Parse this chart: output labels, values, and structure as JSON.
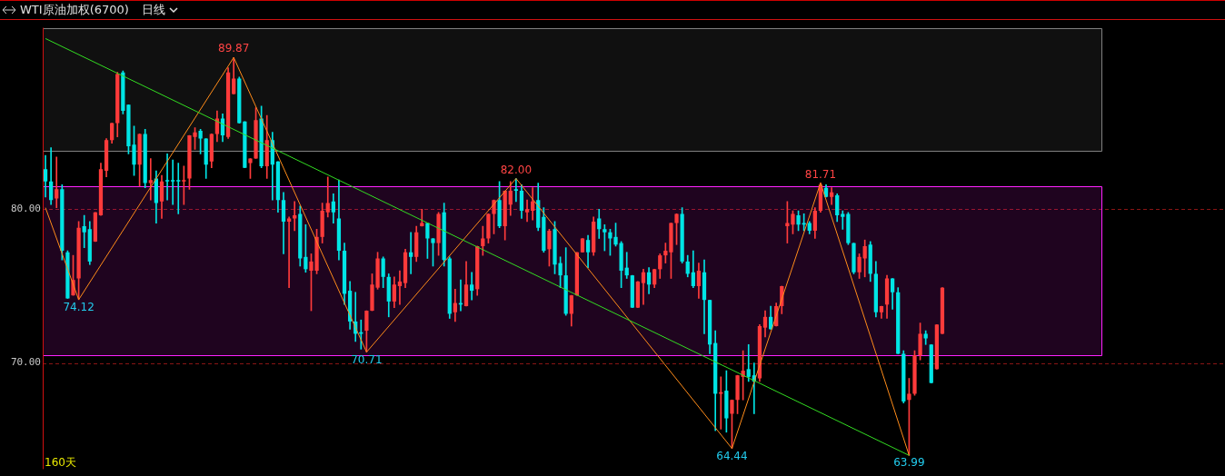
{
  "chart_data": {
    "type": "candlestick",
    "title": "WTI原油加权(6700)",
    "subtitle": "日线",
    "categories": [
      null,
      null,
      null,
      null,
      null,
      null,
      null,
      null,
      null,
      null,
      null,
      null,
      null,
      null,
      null,
      null,
      null,
      null,
      null,
      null,
      null,
      null,
      null,
      null,
      null,
      null,
      null,
      null,
      null,
      null,
      null,
      null,
      null,
      null,
      null,
      null,
      null,
      null,
      null,
      null,
      null,
      null,
      null,
      null,
      null,
      null,
      null,
      null,
      null,
      null,
      null,
      null,
      null,
      null,
      null,
      null,
      null,
      null,
      null,
      null,
      null,
      null,
      null,
      null,
      null,
      null,
      null,
      null,
      null,
      null,
      null,
      null,
      null,
      null,
      null,
      null,
      null,
      null,
      null,
      null,
      null,
      null,
      null,
      null,
      null,
      null,
      null,
      null,
      null,
      null,
      null,
      null,
      null,
      null,
      null,
      null,
      null,
      null,
      null,
      null,
      null,
      null,
      null,
      null,
      null,
      null,
      null,
      null,
      null,
      null,
      null,
      null,
      null,
      null,
      null,
      null,
      null,
      null,
      null,
      null,
      null,
      null,
      null,
      null,
      null,
      null,
      null,
      null,
      null,
      null,
      null,
      null,
      null,
      null,
      null,
      null,
      null,
      null,
      null,
      null,
      null,
      null,
      null,
      null,
      null,
      null,
      null,
      null,
      null,
      null,
      null,
      null,
      null,
      null,
      null,
      null,
      null,
      null,
      null,
      null,
      null,
      null,
      null
    ],
    "ohlc": [
      [
        82.6,
        83.5,
        80.8,
        81.8
      ],
      [
        81.8,
        84.0,
        80.3,
        80.6
      ],
      [
        80.7,
        83.4,
        80.1,
        81.3
      ],
      [
        81.3,
        81.6,
        76.7,
        77.3
      ],
      [
        77.2,
        77.3,
        74.2,
        74.2
      ],
      [
        74.4,
        77.0,
        74.4,
        75.4
      ],
      [
        75.5,
        79.2,
        74.12,
        78.8
      ],
      [
        78.9,
        79.6,
        77.5,
        78.5
      ],
      [
        78.7,
        79.2,
        76.4,
        76.6
      ],
      [
        77.9,
        79.8,
        77.9,
        79.8
      ],
      [
        79.6,
        83.0,
        79.6,
        82.6
      ],
      [
        82.5,
        84.6,
        82.1,
        84.5
      ],
      [
        84.5,
        85.6,
        84.3,
        85.6
      ],
      [
        85.6,
        88.9,
        84.7,
        88.8
      ],
      [
        88.9,
        89.0,
        86.2,
        86.4
      ],
      [
        86.8,
        86.8,
        83.6,
        84.1
      ],
      [
        84.2,
        85.4,
        82.2,
        82.9
      ],
      [
        82.9,
        84.9,
        81.5,
        84.9
      ],
      [
        84.9,
        85.2,
        81.4,
        81.7
      ],
      [
        81.7,
        83.3,
        80.6,
        81.9
      ],
      [
        82.0,
        82.5,
        79.1,
        80.4
      ],
      [
        80.5,
        82.2,
        79.4,
        81.8
      ],
      [
        81.9,
        83.6,
        80.6,
        81.8
      ],
      [
        81.9,
        83.2,
        80.3,
        81.8
      ],
      [
        81.9,
        83.0,
        79.7,
        81.8
      ],
      [
        81.8,
        82.8,
        80.3,
        81.9
      ],
      [
        82.0,
        84.8,
        81.3,
        84.8
      ],
      [
        84.7,
        85.3,
        83.9,
        85.0
      ],
      [
        85.1,
        85.2,
        83.6,
        84.6
      ],
      [
        84.6,
        84.6,
        82.0,
        82.9
      ],
      [
        83.1,
        84.9,
        82.7,
        84.9
      ],
      [
        84.9,
        86.4,
        84.4,
        85.9
      ],
      [
        85.9,
        86.2,
        84.4,
        84.8
      ],
      [
        84.7,
        89.2,
        84.6,
        88.9
      ],
      [
        87.5,
        89.87,
        87.5,
        88.5
      ],
      [
        88.5,
        88.6,
        85.6,
        85.6
      ],
      [
        85.7,
        85.7,
        82.7,
        82.7
      ],
      [
        83.0,
        83.3,
        82.0,
        83.3
      ],
      [
        83.3,
        86.6,
        83.3,
        85.8
      ],
      [
        85.9,
        86.7,
        82.7,
        82.8
      ],
      [
        82.8,
        86.1,
        82.0,
        84.5
      ],
      [
        84.5,
        85.0,
        80.6,
        82.9
      ],
      [
        83.1,
        83.1,
        79.8,
        80.6
      ],
      [
        80.6,
        81.1,
        77.1,
        79.2
      ],
      [
        79.2,
        79.5,
        74.9,
        79.4
      ],
      [
        79.4,
        80.5,
        78.6,
        79.6
      ],
      [
        79.7,
        80.2,
        76.3,
        76.8
      ],
      [
        76.9,
        79.0,
        75.9,
        76.1
      ],
      [
        76.0,
        77.1,
        73.4,
        76.6
      ],
      [
        76.0,
        78.7,
        75.8,
        78.2
      ],
      [
        78.2,
        80.4,
        77.8,
        79.9
      ],
      [
        79.8,
        82.1,
        79.5,
        80.4
      ],
      [
        80.5,
        81.0,
        79.1,
        79.8
      ],
      [
        79.4,
        81.9,
        76.7,
        77.3
      ],
      [
        77.3,
        77.8,
        73.8,
        74.5
      ],
      [
        74.7,
        75.3,
        72.2,
        72.7
      ],
      [
        72.7,
        74.6,
        71.4,
        71.9
      ],
      [
        72.0,
        72.8,
        70.9,
        71.9
      ],
      [
        72.1,
        73.4,
        70.71,
        73.4
      ],
      [
        73.4,
        75.8,
        73.4,
        75.1
      ],
      [
        74.9,
        77.2,
        74.8,
        76.8
      ],
      [
        76.8,
        76.9,
        74.9,
        75.6
      ],
      [
        75.6,
        75.8,
        73.0,
        74.0
      ],
      [
        74.0,
        75.6,
        73.6,
        75.1
      ],
      [
        75.0,
        76.0,
        73.8,
        75.3
      ],
      [
        75.2,
        77.4,
        74.9,
        77.2
      ],
      [
        77.2,
        78.5,
        75.8,
        76.9
      ],
      [
        76.9,
        78.9,
        76.6,
        78.5
      ],
      [
        78.9,
        80.0,
        78.9,
        79.1
      ],
      [
        79.1,
        79.1,
        76.8,
        78.1
      ],
      [
        78.1,
        78.1,
        76.3,
        77.8
      ],
      [
        77.8,
        79.8,
        77.0,
        79.7
      ],
      [
        79.8,
        80.4,
        76.3,
        76.7
      ],
      [
        76.8,
        76.9,
        72.9,
        73.2
      ],
      [
        73.3,
        74.8,
        72.7,
        73.9
      ],
      [
        73.9,
        75.4,
        73.4,
        73.8
      ],
      [
        73.7,
        76.6,
        73.7,
        75.1
      ],
      [
        75.1,
        75.9,
        74.1,
        74.7
      ],
      [
        74.8,
        77.6,
        74.4,
        77.6
      ],
      [
        77.6,
        78.9,
        77.0,
        78.1
      ],
      [
        78.1,
        79.7,
        77.8,
        79.7
      ],
      [
        79.7,
        80.6,
        78.4,
        80.6
      ],
      [
        80.6,
        81.8,
        78.8,
        78.9
      ],
      [
        78.9,
        81.2,
        78.0,
        81.2
      ],
      [
        80.3,
        81.8,
        79.6,
        81.2
      ],
      [
        81.3,
        82.0,
        80.5,
        81.2
      ],
      [
        81.2,
        81.6,
        79.4,
        79.9
      ],
      [
        79.8,
        80.6,
        79.2,
        80.0
      ],
      [
        79.9,
        81.4,
        79.3,
        80.5
      ],
      [
        80.6,
        81.7,
        78.6,
        78.8
      ],
      [
        79.5,
        80.1,
        77.2,
        77.3
      ],
      [
        77.4,
        78.7,
        76.3,
        78.6
      ],
      [
        78.7,
        79.2,
        75.8,
        76.4
      ],
      [
        76.5,
        76.9,
        74.9,
        75.7
      ],
      [
        75.7,
        77.5,
        73.1,
        73.2
      ],
      [
        73.2,
        74.4,
        72.4,
        74.4
      ],
      [
        74.4,
        77.2,
        74.4,
        77.2
      ],
      [
        77.2,
        78.1,
        77.2,
        78.1
      ],
      [
        78.0,
        78.3,
        76.2,
        77.2
      ],
      [
        77.2,
        79.5,
        77.0,
        79.2
      ],
      [
        79.4,
        80.0,
        78.1,
        78.7
      ],
      [
        78.7,
        79.0,
        77.3,
        78.5
      ],
      [
        78.5,
        78.7,
        77.0,
        78.1
      ],
      [
        78.2,
        79.1,
        77.6,
        77.7
      ],
      [
        77.8,
        77.9,
        74.9,
        76.0
      ],
      [
        76.2,
        77.2,
        75.5,
        75.7
      ],
      [
        75.7,
        75.7,
        73.6,
        73.6
      ],
      [
        73.6,
        75.3,
        73.6,
        75.3
      ],
      [
        75.2,
        76.1,
        73.8,
        75.9
      ],
      [
        75.9,
        76.2,
        74.5,
        75.1
      ],
      [
        75.1,
        76.1,
        74.9,
        76.1
      ],
      [
        76.1,
        77.1,
        75.5,
        77.0
      ],
      [
        77.0,
        77.8,
        76.5,
        77.3
      ],
      [
        77.2,
        79.1,
        75.5,
        79.1
      ],
      [
        79.1,
        79.7,
        77.7,
        79.7
      ],
      [
        79.7,
        80.1,
        76.5,
        76.6
      ],
      [
        76.6,
        77.0,
        75.6,
        75.8
      ],
      [
        75.9,
        77.3,
        74.9,
        75.0
      ],
      [
        75.0,
        76.5,
        74.2,
        76.0
      ],
      [
        75.9,
        76.7,
        71.9,
        74.1
      ],
      [
        74.1,
        74.1,
        70.6,
        71.2
      ],
      [
        71.3,
        72.1,
        65.6,
        68.0
      ],
      [
        68.0,
        69.1,
        65.7,
        68.1
      ],
      [
        68.2,
        69.5,
        65.5,
        66.4
      ],
      [
        66.7,
        67.6,
        64.44,
        67.6
      ],
      [
        67.6,
        69.2,
        66.7,
        69.2
      ],
      [
        69.1,
        70.8,
        67.6,
        69.5
      ],
      [
        69.6,
        71.2,
        68.8,
        69.1
      ],
      [
        69.2,
        70.0,
        66.7,
        68.8
      ],
      [
        69.0,
        72.5,
        68.8,
        72.4
      ],
      [
        72.3,
        73.4,
        71.7,
        73.0
      ],
      [
        73.0,
        73.7,
        72.2,
        72.2
      ],
      [
        72.4,
        73.9,
        72.4,
        73.7
      ],
      [
        73.7,
        75.0,
        73.2,
        75.0
      ],
      [
        78.9,
        80.5,
        77.8,
        79.1
      ],
      [
        79.0,
        79.9,
        78.4,
        79.7
      ],
      [
        79.6,
        79.9,
        78.6,
        79.0
      ],
      [
        79.1,
        79.7,
        78.6,
        79.0
      ],
      [
        79.1,
        79.2,
        78.4,
        78.6
      ],
      [
        78.6,
        80.1,
        78.1,
        79.9
      ],
      [
        79.9,
        81.71,
        79.8,
        81.6
      ],
      [
        81.4,
        81.6,
        80.8,
        80.8
      ],
      [
        80.8,
        81.4,
        80.3,
        81.1
      ],
      [
        80.9,
        81.0,
        79.2,
        79.6
      ],
      [
        79.7,
        79.9,
        78.7,
        79.5
      ],
      [
        79.7,
        79.8,
        77.7,
        77.8
      ],
      [
        77.8,
        77.8,
        75.8,
        75.9
      ],
      [
        75.9,
        77.1,
        75.5,
        76.9
      ],
      [
        76.8,
        78.0,
        75.6,
        77.6
      ],
      [
        77.7,
        77.9,
        75.3,
        75.8
      ],
      [
        75.8,
        76.6,
        73.0,
        73.3
      ],
      [
        73.3,
        73.7,
        72.9,
        73.7
      ],
      [
        73.8,
        75.7,
        72.9,
        75.5
      ],
      [
        75.5,
        75.5,
        73.5,
        74.6
      ],
      [
        74.6,
        74.9,
        70.6,
        70.6
      ],
      [
        70.6,
        70.8,
        67.4,
        67.5
      ],
      [
        67.6,
        69.0,
        63.99,
        68.0
      ],
      [
        68.0,
        70.8,
        67.9,
        70.5
      ],
      [
        70.5,
        72.6,
        70.2,
        71.9
      ],
      [
        71.9,
        72.1,
        71.2,
        71.6
      ],
      [
        71.2,
        71.2,
        68.7,
        68.7
      ],
      [
        69.6,
        72.5,
        69.6,
        72.5
      ],
      [
        71.9,
        74.9,
        71.9,
        74.9
      ]
    ],
    "colors": [
      "#00e5e5",
      "#00e5e5",
      "#ff3b3b",
      "#00e5e5",
      "#00e5e5",
      "#ff3b3b",
      "#ff3b3b",
      "#00e5e5",
      "#00e5e5",
      "#ff3b3b",
      "#ff3b3b",
      "#ff3b3b",
      "#ff3b3b",
      "#ff3b3b",
      "#00e5e5",
      "#00e5e5",
      "#00e5e5",
      "#ff3b3b",
      "#00e5e5",
      "#ff3b3b",
      "#00e5e5",
      "#ff3b3b",
      "#00e5e5",
      "#00e5e5",
      "#00e5e5",
      "#ff3b3b",
      "#ff3b3b",
      "#ff3b3b",
      "#00e5e5",
      "#00e5e5",
      "#ff3b3b",
      "#ff3b3b",
      "#00e5e5",
      "#ff3b3b",
      "#ff3b3b",
      "#00e5e5",
      "#00e5e5",
      "#ff3b3b",
      "#ff3b3b",
      "#00e5e5",
      "#ff3b3b",
      "#00e5e5",
      "#00e5e5",
      "#00e5e5",
      "#ff3b3b",
      "#ff3b3b",
      "#00e5e5",
      "#00e5e5",
      "#ff3b3b",
      "#ff3b3b",
      "#ff3b3b",
      "#ff3b3b",
      "#00e5e5",
      "#00e5e5",
      "#00e5e5",
      "#00e5e5",
      "#00e5e5",
      "#00e5e5",
      "#ff3b3b",
      "#ff3b3b",
      "#ff3b3b",
      "#00e5e5",
      "#00e5e5",
      "#ff3b3b",
      "#ff3b3b",
      "#ff3b3b",
      "#00e5e5",
      "#ff3b3b",
      "#ff3b3b",
      "#00e5e5",
      "#00e5e5",
      "#ff3b3b",
      "#00e5e5",
      "#00e5e5",
      "#ff3b3b",
      "#00e5e5",
      "#ff3b3b",
      "#00e5e5",
      "#ff3b3b",
      "#ff3b3b",
      "#ff3b3b",
      "#ff3b3b",
      "#00e5e5",
      "#ff3b3b",
      "#ff3b3b",
      "#00e5e5",
      "#00e5e5",
      "#ff3b3b",
      "#ff3b3b",
      "#00e5e5",
      "#00e5e5",
      "#ff3b3b",
      "#00e5e5",
      "#00e5e5",
      "#00e5e5",
      "#ff3b3b",
      "#ff3b3b",
      "#ff3b3b",
      "#00e5e5",
      "#ff3b3b",
      "#00e5e5",
      "#00e5e5",
      "#00e5e5",
      "#00e5e5",
      "#00e5e5",
      "#00e5e5",
      "#00e5e5",
      "#ff3b3b",
      "#ff3b3b",
      "#00e5e5",
      "#ff3b3b",
      "#ff3b3b",
      "#ff3b3b",
      "#ff3b3b",
      "#ff3b3b",
      "#00e5e5",
      "#00e5e5",
      "#00e5e5",
      "#ff3b3b",
      "#00e5e5",
      "#00e5e5",
      "#00e5e5",
      "#ff3b3b",
      "#00e5e5",
      "#ff3b3b",
      "#ff3b3b",
      "#ff3b3b",
      "#00e5e5",
      "#00e5e5",
      "#ff3b3b",
      "#ff3b3b",
      "#00e5e5",
      "#ff3b3b",
      "#ff3b3b",
      "#ff3b3b",
      "#ff3b3b",
      "#00e5e5",
      "#00e5e5",
      "#00e5e5",
      "#ff3b3b",
      "#ff3b3b",
      "#00e5e5",
      "#ff3b3b",
      "#00e5e5",
      "#00e5e5",
      "#00e5e5",
      "#00e5e5",
      "#ff3b3b",
      "#ff3b3b",
      "#00e5e5",
      "#00e5e5",
      "#ff3b3b",
      "#ff3b3b",
      "#00e5e5",
      "#00e5e5",
      "#00e5e5",
      "#ff3b3b",
      "#ff3b3b",
      "#ff3b3b",
      "#00e5e5",
      "#00e5e5",
      "#ff3b3b",
      "#ff3b3b"
    ],
    "series": [
      {
        "type": "line",
        "color": "#33dd22",
        "values": [
          91.1,
          null,
          null,
          null,
          null,
          null,
          null,
          null,
          null,
          null,
          null,
          null,
          null,
          null,
          null,
          null,
          null,
          null,
          null,
          null,
          null,
          null,
          null,
          null,
          null,
          null,
          null,
          null,
          null,
          null,
          null,
          null,
          null,
          null,
          null,
          null,
          null,
          null,
          null,
          null,
          null,
          null,
          null,
          null,
          null,
          null,
          null,
          null,
          null,
          null,
          null,
          null,
          null,
          null,
          null,
          null,
          null,
          null,
          null,
          null,
          null,
          null,
          null,
          null,
          null,
          null,
          null,
          null,
          null,
          null,
          null,
          null,
          null,
          null,
          null,
          null,
          null,
          null,
          null,
          null,
          null,
          null,
          null,
          null,
          null,
          null,
          null,
          null,
          null,
          null,
          null,
          null,
          null,
          null,
          null,
          null,
          null,
          null,
          null,
          null,
          null,
          null,
          null,
          null,
          null,
          null,
          null,
          null,
          null,
          null,
          null,
          null,
          null,
          null,
          null,
          null,
          null,
          null,
          null,
          null,
          null,
          null,
          null,
          null,
          null,
          null,
          null,
          null,
          null,
          null,
          null,
          null,
          null,
          null,
          null,
          null,
          null,
          null,
          null,
          null,
          null,
          null,
          null,
          null,
          null,
          null,
          null,
          null,
          null,
          null,
          null,
          null,
          null,
          null,
          null,
          null,
          63.99,
          null,
          null,
          null,
          null,
          null,
          null
        ]
      },
      {
        "type": "line",
        "color": "#ff8c1a",
        "values": [
          80.1,
          null,
          null,
          null,
          null,
          null,
          74.12,
          null,
          null,
          null,
          null,
          null,
          null,
          null,
          null,
          null,
          null,
          null,
          null,
          null,
          null,
          null,
          null,
          null,
          null,
          null,
          null,
          null,
          null,
          null,
          null,
          null,
          null,
          null,
          89.87,
          null,
          null,
          null,
          null,
          null,
          null,
          null,
          null,
          null,
          null,
          null,
          null,
          null,
          null,
          null,
          null,
          null,
          null,
          null,
          null,
          null,
          null,
          null,
          70.71,
          null,
          null,
          null,
          null,
          null,
          null,
          null,
          null,
          null,
          null,
          null,
          null,
          null,
          null,
          null,
          null,
          null,
          null,
          null,
          null,
          null,
          null,
          null,
          null,
          null,
          null,
          82.0,
          null,
          null,
          null,
          null,
          null,
          null,
          null,
          null,
          null,
          null,
          null,
          null,
          null,
          null,
          null,
          null,
          null,
          null,
          null,
          null,
          null,
          null,
          null,
          null,
          null,
          null,
          null,
          null,
          null,
          null,
          null,
          null,
          null,
          null,
          null,
          null,
          null,
          null,
          64.44,
          null,
          null,
          null,
          null,
          null,
          null,
          null,
          null,
          null,
          null,
          null,
          null,
          null,
          null,
          null,
          81.71,
          null,
          null,
          null,
          null,
          null,
          null,
          null,
          null,
          null,
          null,
          null,
          null,
          null,
          null,
          null,
          63.99,
          null,
          null,
          null,
          null,
          null,
          null
        ]
      }
    ],
    "bands": [
      {
        "axis": "y",
        "from": 70.5,
        "to": 81.5,
        "color": "#ff22ff"
      },
      {
        "axis": "y",
        "from": 83.8,
        "to": 91.8,
        "color": "#808080"
      }
    ],
    "ylim": [
      63.1,
      91.8
    ],
    "yticks": [
      {
        "value": 80,
        "label": "80.00"
      },
      {
        "value": 70,
        "label": "70.00"
      }
    ],
    "tick_labels": "y",
    "grid": "y",
    "annotations": [
      "160天",
      {
        "text": "89.87",
        "y": 89.87
      },
      {
        "text": "74.12",
        "y": 74.12
      },
      {
        "text": "70.71",
        "y": 70.71
      },
      {
        "text": "82.00",
        "y": 82.0
      },
      {
        "text": "64.44",
        "y": 64.44
      },
      {
        "text": "81.71",
        "y": 81.71
      },
      {
        "text": "63.99",
        "y": 63.99
      }
    ]
  }
}
